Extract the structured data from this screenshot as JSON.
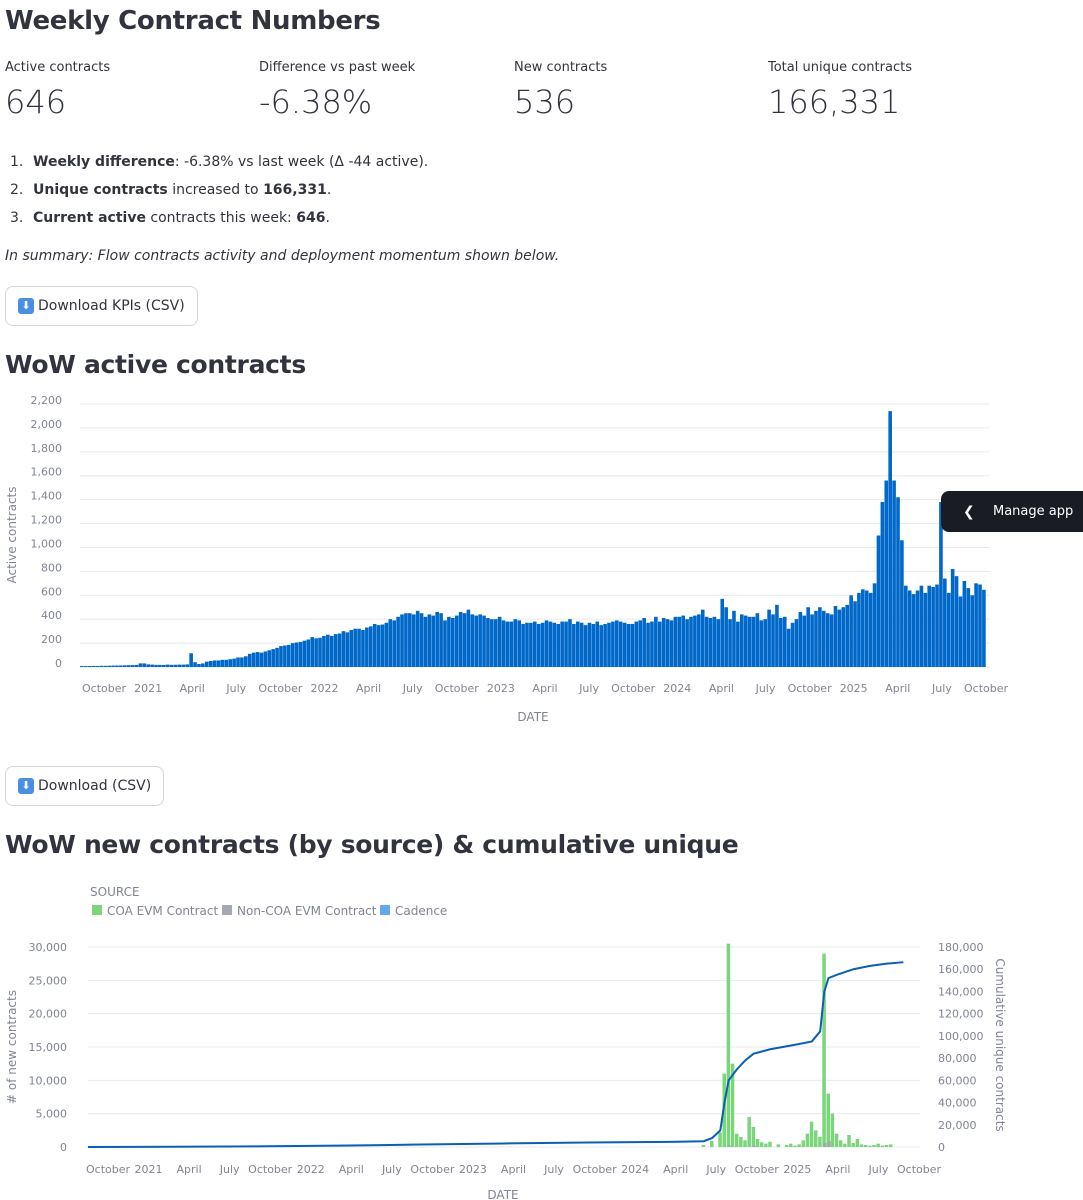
{
  "page_title": "Weekly Contract Numbers",
  "metrics": [
    {
      "label": "Active contracts",
      "value": "646"
    },
    {
      "label": "Difference vs past week",
      "value": "-6.38%"
    },
    {
      "label": "New contracts",
      "value": "536"
    },
    {
      "label": "Total unique contracts",
      "value": "166,331"
    }
  ],
  "list": [
    {
      "num": "1.",
      "bold": "Weekly difference",
      "rest": ": -6.38% vs last week (Δ -44 active)."
    },
    {
      "num": "2.",
      "bold": "Unique contracts",
      "rest": " increased to ",
      "bold2": "166,331",
      "end": "."
    },
    {
      "num": "3.",
      "bold": "Current active",
      "rest": " contracts this week: ",
      "bold2": "646",
      "end": "."
    }
  ],
  "summary": "In summary: Flow contracts activity and deployment momentum shown below.",
  "download_kpis_label": "Download KPIs (CSV)",
  "download_icon": "down-arrow-icon",
  "section1_title": "WoW active contracts",
  "download_csv_label": "Download (CSV)",
  "section2_title": "WoW new contracts (by source) & cumulative unique",
  "manage_app_label": "Manage app",
  "manage_icon": "chevron-left-icon",
  "colors": {
    "bar": "#0068c9",
    "coa": "#7bd67b",
    "noncoa": "#a3a8b4",
    "cadence": "#62a8ec",
    "cumulative": "#0a5fb4"
  },
  "chart_data": [
    {
      "type": "bar",
      "title": "WoW active contracts",
      "xlabel": "DATE",
      "ylabel": "Active contracts",
      "ylim": [
        0,
        2200
      ],
      "y_ticks": [
        "0",
        "200",
        "400",
        "600",
        "800",
        "1,000",
        "1,200",
        "1,400",
        "1,600",
        "1,800",
        "2,000",
        "2,200"
      ],
      "x_ticks": [
        "October",
        "2021",
        "April",
        "July",
        "October",
        "2022",
        "April",
        "July",
        "October",
        "2023",
        "April",
        "July",
        "October",
        "2024",
        "April",
        "July",
        "October",
        "2025",
        "April",
        "July",
        "October"
      ],
      "grid": true,
      "values": [
        8,
        8,
        8,
        9,
        9,
        10,
        10,
        11,
        12,
        12,
        13,
        14,
        15,
        16,
        17,
        30,
        30,
        22,
        20,
        18,
        18,
        17,
        20,
        18,
        19,
        20,
        20,
        22,
        115,
        40,
        25,
        30,
        45,
        50,
        55,
        55,
        60,
        60,
        65,
        70,
        80,
        80,
        90,
        110,
        120,
        125,
        120,
        130,
        140,
        150,
        160,
        175,
        180,
        185,
        200,
        205,
        210,
        220,
        230,
        250,
        240,
        245,
        260,
        270,
        260,
        275,
        280,
        300,
        290,
        310,
        320,
        320,
        310,
        330,
        340,
        360,
        350,
        355,
        370,
        400,
        390,
        420,
        440,
        450,
        450,
        440,
        470,
        450,
        420,
        440,
        430,
        460,
        450,
        390,
        420,
        410,
        430,
        460,
        450,
        480,
        440,
        430,
        440,
        430,
        410,
        400,
        400,
        420,
        390,
        380,
        380,
        400,
        390,
        360,
        370,
        370,
        380,
        360,
        370,
        390,
        380,
        370,
        360,
        380,
        380,
        400,
        360,
        380,
        370,
        350,
        370,
        360,
        380,
        350,
        360,
        370,
        380,
        390,
        380,
        370,
        360,
        360,
        380,
        390,
        410,
        370,
        380,
        420,
        380,
        410,
        400,
        390,
        420,
        420,
        430,
        400,
        420,
        430,
        440,
        480,
        420,
        410,
        420,
        400,
        570,
        500,
        400,
        470,
        380,
        440,
        430,
        420,
        420,
        450,
        390,
        400,
        480,
        440,
        520,
        410,
        420,
        320,
        370,
        400,
        460,
        430,
        500,
        440,
        470,
        500,
        470,
        450,
        440,
        510,
        480,
        500,
        520,
        600,
        550,
        620,
        650,
        640,
        620,
        700,
        1100,
        1380,
        1560,
        2140,
        1560,
        1420,
        1060,
        680,
        640,
        610,
        640,
        680,
        620,
        680,
        670,
        690,
        1380,
        740,
        620,
        820,
        760,
        590,
        720,
        660,
        600,
        700,
        690,
        646
      ],
      "date_range": [
        "2020-09",
        "2025-10"
      ]
    },
    {
      "type": "bar",
      "title": "WoW new contracts (by source) & cumulative unique",
      "xlabel": "DATE",
      "ylabel": "# of new contracts",
      "y2label": "Cumulative unique contracts",
      "ylim": [
        0,
        30000
      ],
      "y2lim": [
        0,
        180000
      ],
      "y_ticks": [
        "0",
        "5,000",
        "10,000",
        "15,000",
        "20,000",
        "25,000",
        "30,000"
      ],
      "y2_ticks": [
        "0",
        "20,000",
        "40,000",
        "60,000",
        "80,000",
        "100,000",
        "120,000",
        "140,000",
        "160,000",
        "180,000"
      ],
      "x_ticks": [
        "October",
        "2021",
        "April",
        "July",
        "October",
        "2022",
        "April",
        "July",
        "October",
        "2023",
        "April",
        "July",
        "October",
        "2024",
        "April",
        "July",
        "October",
        "2025",
        "April",
        "July",
        "October"
      ],
      "legend_title": "SOURCE",
      "legend": [
        "COA EVM Contract",
        "Non-COA EVM Contract",
        "Cadence"
      ],
      "legend_position": "top-left",
      "series": [
        {
          "name": "COA EVM Contract",
          "spikes": [
            [
              0.74,
              300
            ],
            [
              0.75,
              900
            ],
            [
              0.76,
              2200
            ],
            [
              0.765,
              11000
            ],
            [
              0.77,
              30500
            ],
            [
              0.775,
              12500
            ],
            [
              0.78,
              2000
            ],
            [
              0.785,
              1500
            ],
            [
              0.79,
              1000
            ],
            [
              0.795,
              4500
            ],
            [
              0.8,
              3000
            ],
            [
              0.805,
              1200
            ],
            [
              0.81,
              700
            ],
            [
              0.815,
              500
            ],
            [
              0.82,
              800
            ],
            [
              0.83,
              400
            ],
            [
              0.84,
              300
            ],
            [
              0.845,
              500
            ],
            [
              0.85,
              200
            ],
            [
              0.855,
              400
            ],
            [
              0.86,
              1000
            ],
            [
              0.865,
              2000
            ],
            [
              0.87,
              3800
            ],
            [
              0.875,
              2500
            ],
            [
              0.88,
              1500
            ],
            [
              0.885,
              29000
            ],
            [
              0.89,
              8000
            ],
            [
              0.895,
              5000
            ],
            [
              0.9,
              2000
            ],
            [
              0.905,
              1000
            ],
            [
              0.91,
              500
            ],
            [
              0.915,
              1800
            ],
            [
              0.92,
              600
            ],
            [
              0.925,
              1200
            ],
            [
              0.93,
              400
            ],
            [
              0.935,
              300
            ],
            [
              0.94,
              200
            ],
            [
              0.945,
              300
            ],
            [
              0.95,
              500
            ],
            [
              0.955,
              200
            ],
            [
              0.96,
              300
            ],
            [
              0.965,
              400
            ]
          ]
        },
        {
          "name": "Cumulative unique contracts",
          "points": [
            [
              0.0,
              0
            ],
            [
              0.1,
              200
            ],
            [
              0.2,
              600
            ],
            [
              0.3,
              1200
            ],
            [
              0.4,
              2200
            ],
            [
              0.5,
              3200
            ],
            [
              0.6,
              4000
            ],
            [
              0.7,
              4600
            ],
            [
              0.74,
              5200
            ],
            [
              0.75,
              8000
            ],
            [
              0.76,
              15000
            ],
            [
              0.765,
              40000
            ],
            [
              0.77,
              60000
            ],
            [
              0.78,
              70000
            ],
            [
              0.79,
              78000
            ],
            [
              0.8,
              84000
            ],
            [
              0.82,
              88000
            ],
            [
              0.85,
              92000
            ],
            [
              0.87,
              95000
            ],
            [
              0.88,
              104000
            ],
            [
              0.885,
              140000
            ],
            [
              0.89,
              152000
            ],
            [
              0.9,
              155000
            ],
            [
              0.92,
              160000
            ],
            [
              0.94,
              163000
            ],
            [
              0.96,
              165000
            ],
            [
              0.98,
              166331
            ]
          ]
        }
      ]
    }
  ]
}
